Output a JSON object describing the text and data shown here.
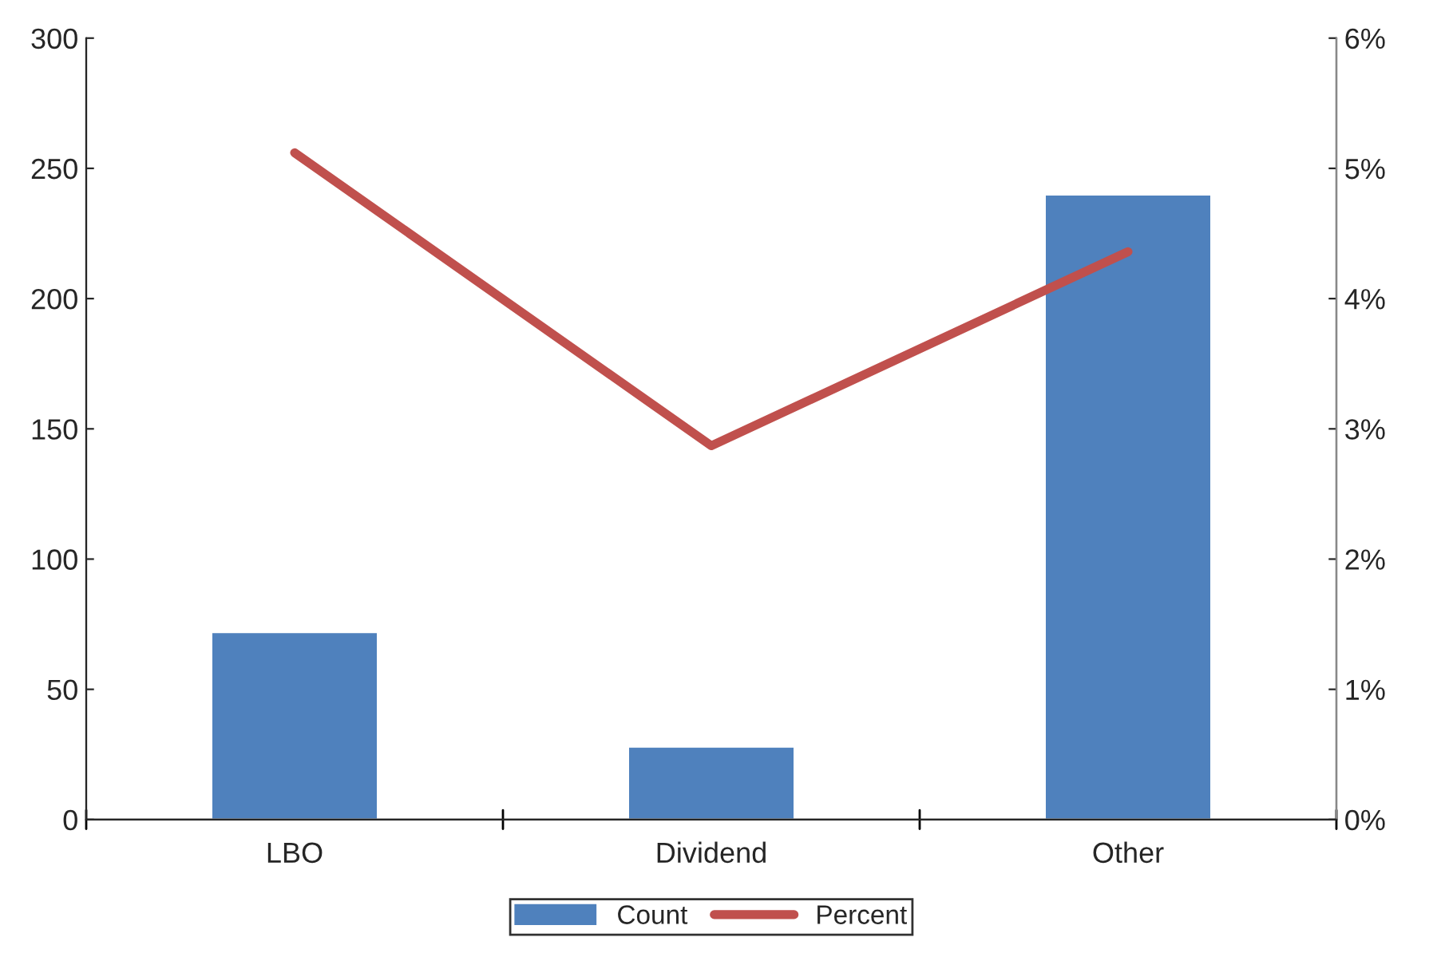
{
  "chart_data": {
    "type": "bar",
    "categories": [
      "LBO",
      "Dividend",
      "Other"
    ],
    "series": [
      {
        "name": "Count",
        "color": "#4f81bd",
        "values": [
          72,
          28,
          240
        ]
      },
      {
        "name": "Percent",
        "type": "line",
        "axis": "y2",
        "color": "#c0504d",
        "values": [
          5.12,
          2.87,
          4.36
        ]
      }
    ],
    "ylim": [
      0,
      300
    ],
    "yticks": [
      0,
      50,
      100,
      150,
      200,
      250,
      300
    ],
    "y2lim": [
      0,
      6
    ],
    "y2ticks": [
      {
        "value": 0,
        "label": "0%"
      },
      {
        "value": 1,
        "label": "1%"
      },
      {
        "value": 2,
        "label": "2%"
      },
      {
        "value": 3,
        "label": "3%"
      },
      {
        "value": 4,
        "label": "4%"
      },
      {
        "value": 5,
        "label": "5%"
      },
      {
        "value": 6,
        "label": "6%"
      }
    ],
    "grid": false,
    "legend": "bottom",
    "marker": "none",
    "line_style": "solid"
  }
}
